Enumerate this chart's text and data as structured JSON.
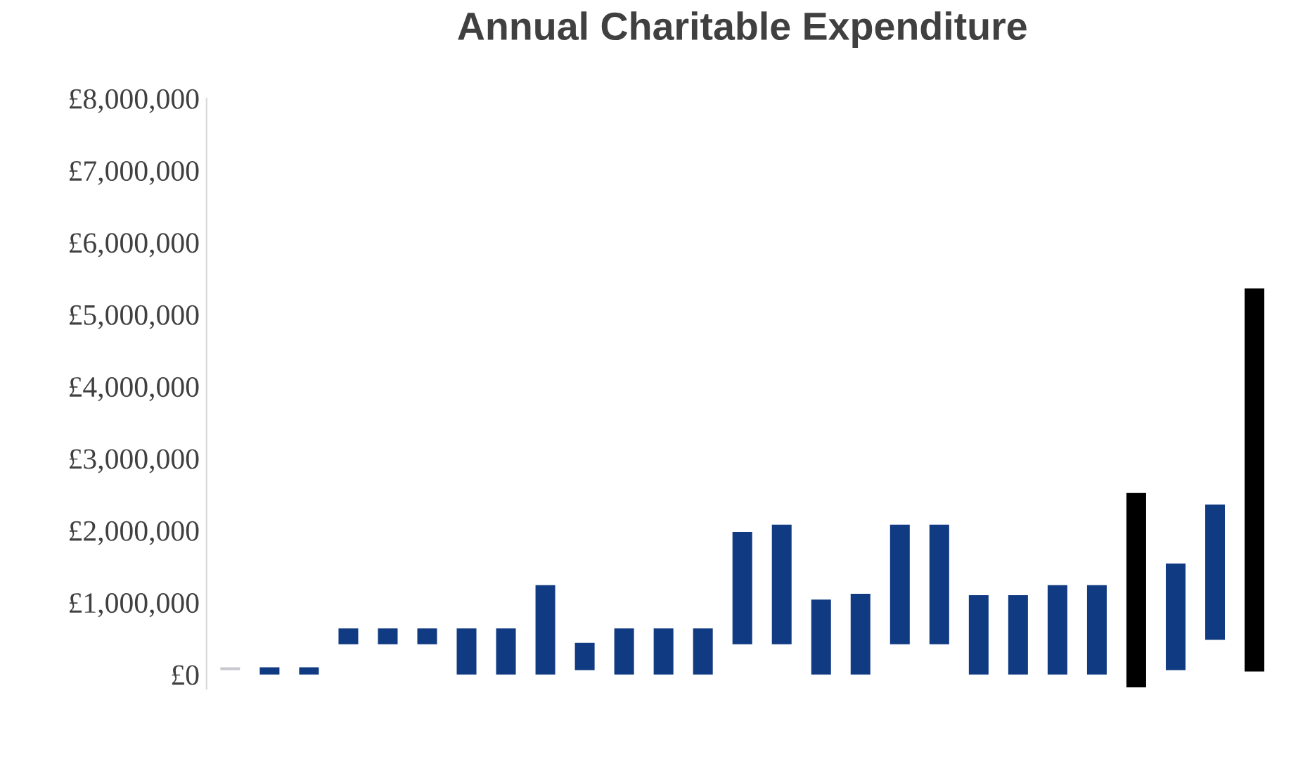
{
  "chart_data": {
    "type": "bar",
    "title": "Annual Charitable Expenditure",
    "categories": [
      null,
      null,
      null,
      null,
      null,
      null,
      null,
      null,
      null,
      null,
      null,
      null,
      null,
      null,
      null,
      null,
      null,
      null,
      null,
      null,
      null,
      null,
      null,
      null,
      null,
      null,
      null
    ],
    "base": [
      60000,
      0,
      0,
      420000,
      420000,
      420000,
      0,
      0,
      0,
      60000,
      0,
      0,
      0,
      420000,
      420000,
      0,
      0,
      420000,
      420000,
      0,
      0,
      0,
      0,
      -180000,
      60000,
      480000,
      40000
    ],
    "values": [
      40000,
      100000,
      100000,
      220000,
      220000,
      220000,
      640000,
      640000,
      1240000,
      380000,
      640000,
      640000,
      640000,
      1560000,
      1660000,
      1040000,
      1120000,
      1660000,
      1660000,
      1100000,
      1100000,
      1240000,
      1240000,
      2700000,
      1480000,
      1880000,
      5320000
    ],
    "colors": [
      "#c8c8d0",
      "#103a82",
      "#103a82",
      "#103a82",
      "#103a82",
      "#103a82",
      "#103a82",
      "#103a82",
      "#103a82",
      "#103a82",
      "#103a82",
      "#103a82",
      "#103a82",
      "#103a82",
      "#103a82",
      "#103a82",
      "#103a82",
      "#103a82",
      "#103a82",
      "#103a82",
      "#103a82",
      "#103a82",
      "#103a82",
      "#000000",
      "#103a82",
      "#103a82",
      "#000000"
    ],
    "ylim": [
      -200000,
      8000000
    ],
    "yticks": [
      {
        "value": 0,
        "label": "£0"
      },
      {
        "value": 1000000,
        "label": "£1,000,000"
      },
      {
        "value": 2000000,
        "label": "£2,000,000"
      },
      {
        "value": 3000000,
        "label": "£3,000,000"
      },
      {
        "value": 4000000,
        "label": "£4,000,000"
      },
      {
        "value": 5000000,
        "label": "£5,000,000"
      },
      {
        "value": 6000000,
        "label": "£6,000,000"
      },
      {
        "value": 7000000,
        "label": "£7,000,000"
      },
      {
        "value": 8000000,
        "label": "£8,000,000"
      }
    ],
    "tick_labels": "y",
    "grid": false,
    "legend": false
  }
}
